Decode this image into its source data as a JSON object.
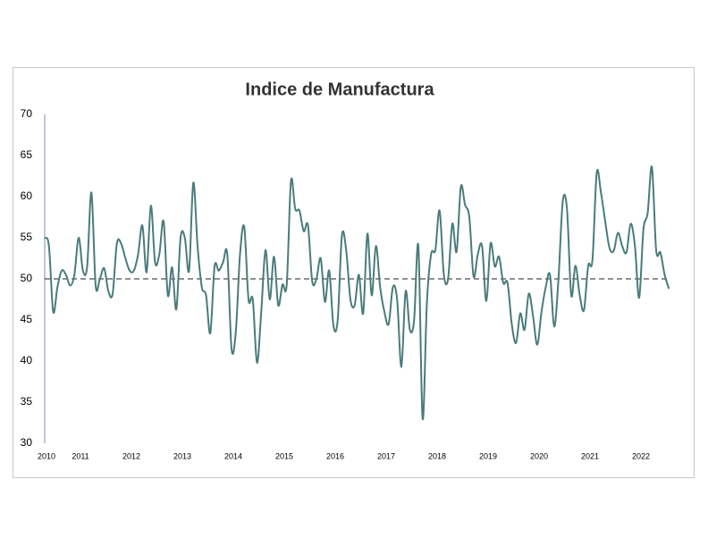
{
  "chart_data": {
    "type": "line",
    "title": "Indice de Manufactura",
    "categories": [
      "2010",
      null,
      null,
      null,
      null,
      null,
      null,
      null,
      "2011",
      null,
      null,
      null,
      null,
      null,
      null,
      null,
      null,
      null,
      null,
      null,
      "2012",
      null,
      null,
      null,
      null,
      null,
      null,
      null,
      null,
      null,
      null,
      null,
      "2013",
      null,
      null,
      null,
      null,
      null,
      null,
      null,
      null,
      null,
      null,
      null,
      "2014",
      null,
      null,
      null,
      null,
      null,
      null,
      null,
      null,
      null,
      null,
      null,
      "2015",
      null,
      null,
      null,
      null,
      null,
      null,
      null,
      null,
      null,
      null,
      null,
      "2016",
      null,
      null,
      null,
      null,
      null,
      null,
      null,
      null,
      null,
      null,
      null,
      "2017",
      null,
      null,
      null,
      null,
      null,
      null,
      null,
      null,
      null,
      null,
      null,
      "2018",
      null,
      null,
      null,
      null,
      null,
      null,
      null,
      null,
      null,
      null,
      null,
      "2019",
      null,
      null,
      null,
      null,
      null,
      null,
      null,
      null,
      null,
      null,
      null,
      "2020",
      null,
      null,
      null,
      null,
      null,
      null,
      null,
      null,
      null,
      null,
      null,
      "2021",
      null,
      null,
      null,
      null,
      null,
      null,
      null,
      null,
      null,
      null,
      null,
      "2022",
      null,
      null,
      null,
      null,
      null,
      null,
      null
    ],
    "values": [
      55,
      54,
      46,
      49,
      51,
      50.5,
      49.2,
      50.5,
      55,
      51,
      51.5,
      60.5,
      49.2,
      50,
      51.3,
      48.5,
      48.2,
      54.3,
      54.3,
      52.5,
      51,
      51,
      53,
      56.5,
      50.8,
      58.9,
      52,
      53,
      57,
      48,
      51.4,
      46.3,
      55,
      55,
      51,
      61.7,
      54,
      49,
      48,
      43.4,
      51.5,
      51,
      52,
      53,
      41.5,
      43.5,
      53,
      56.3,
      47.5,
      47.5,
      39.8,
      46,
      53.5,
      47.5,
      52.7,
      46.8,
      49.3,
      49.3,
      61.9,
      58.5,
      58.3,
      55.8,
      56.5,
      49.7,
      50,
      52.5,
      47.2,
      51,
      44.3,
      45,
      55.3,
      53.5,
      47.5,
      46.8,
      50.5,
      45.8,
      55.5,
      48,
      54,
      49,
      46,
      44.5,
      49,
      47.5,
      39.3,
      48.5,
      43.8,
      45,
      54,
      33,
      47,
      53,
      53.5,
      58.3,
      50.5,
      50,
      56.7,
      53.3,
      61.2,
      59,
      57.5,
      50.3,
      53,
      54,
      47.3,
      54.3,
      51.5,
      52.7,
      49.5,
      49.5,
      44.5,
      42.2,
      45.8,
      43.8,
      48.2,
      45.5,
      42,
      46,
      49,
      50.5,
      44.2,
      50,
      59.4,
      58.5,
      48,
      51.6,
      48,
      46.2,
      51.6,
      52.3,
      62.9,
      60.5,
      57,
      53.8,
      53.4,
      55.6,
      54,
      53.2,
      56.7,
      54,
      47.7,
      56,
      58,
      63.6,
      53.5,
      53.2,
      50.5,
      48.8
    ],
    "color": "#4a7c7a",
    "reference_line": 50,
    "ylim": [
      30,
      70
    ],
    "yticks": [
      30,
      35,
      40,
      45,
      50,
      55,
      60,
      65,
      70
    ],
    "grid": false
  }
}
